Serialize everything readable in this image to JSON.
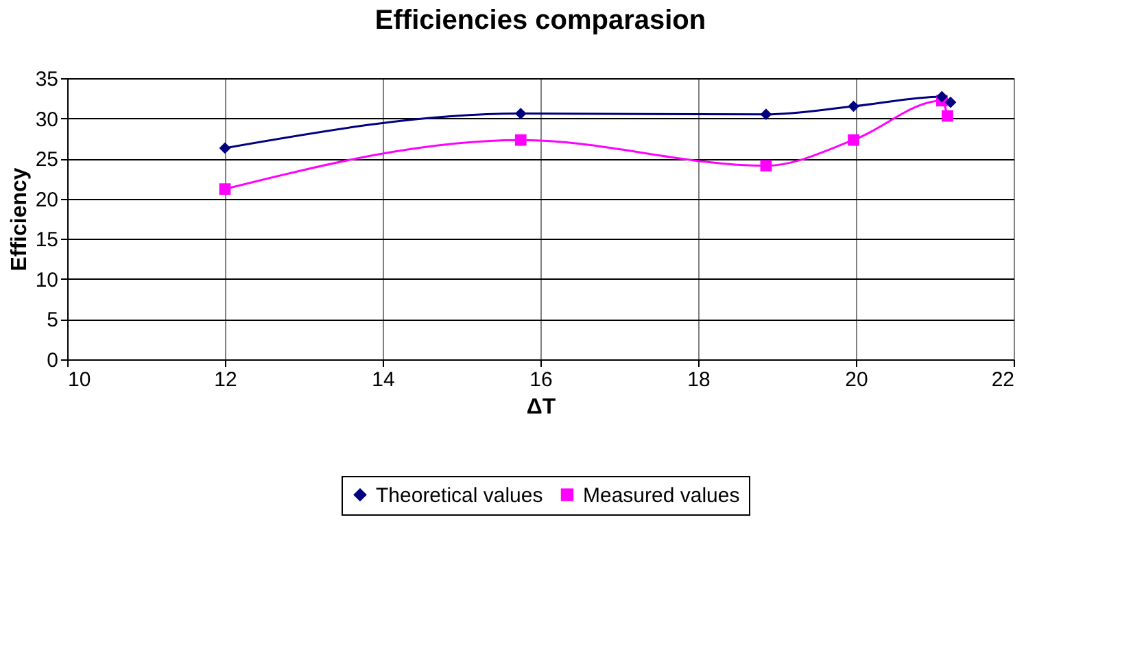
{
  "chart_data": {
    "type": "line",
    "title": "Efficiencies comparasion",
    "xlabel": "ΔT",
    "ylabel": "Efficiency",
    "xlim": [
      10,
      22
    ],
    "xticks": [
      10,
      12,
      14,
      16,
      18,
      20,
      22
    ],
    "ylim": [
      0,
      35
    ],
    "yticks": [
      0,
      5,
      10,
      15,
      20,
      25,
      30,
      35
    ],
    "grid": true,
    "legend": "bottom",
    "line_style": "solid",
    "series": [
      {
        "name": "Theoretical values",
        "color": "#000080",
        "marker": "diamond",
        "x": [
          12,
          15.75,
          18.86,
          19.97,
          21.09,
          21.2
        ],
        "values": [
          26.3,
          30.6,
          30.5,
          31.5,
          32.7,
          32.0
        ]
      },
      {
        "name": "Measured values",
        "color": "#ff00ff",
        "marker": "square",
        "x": [
          12,
          15.75,
          18.86,
          19.97,
          21.09,
          21.16
        ],
        "values": [
          21.2,
          27.3,
          24.1,
          27.3,
          32.2,
          30.3
        ]
      }
    ]
  }
}
